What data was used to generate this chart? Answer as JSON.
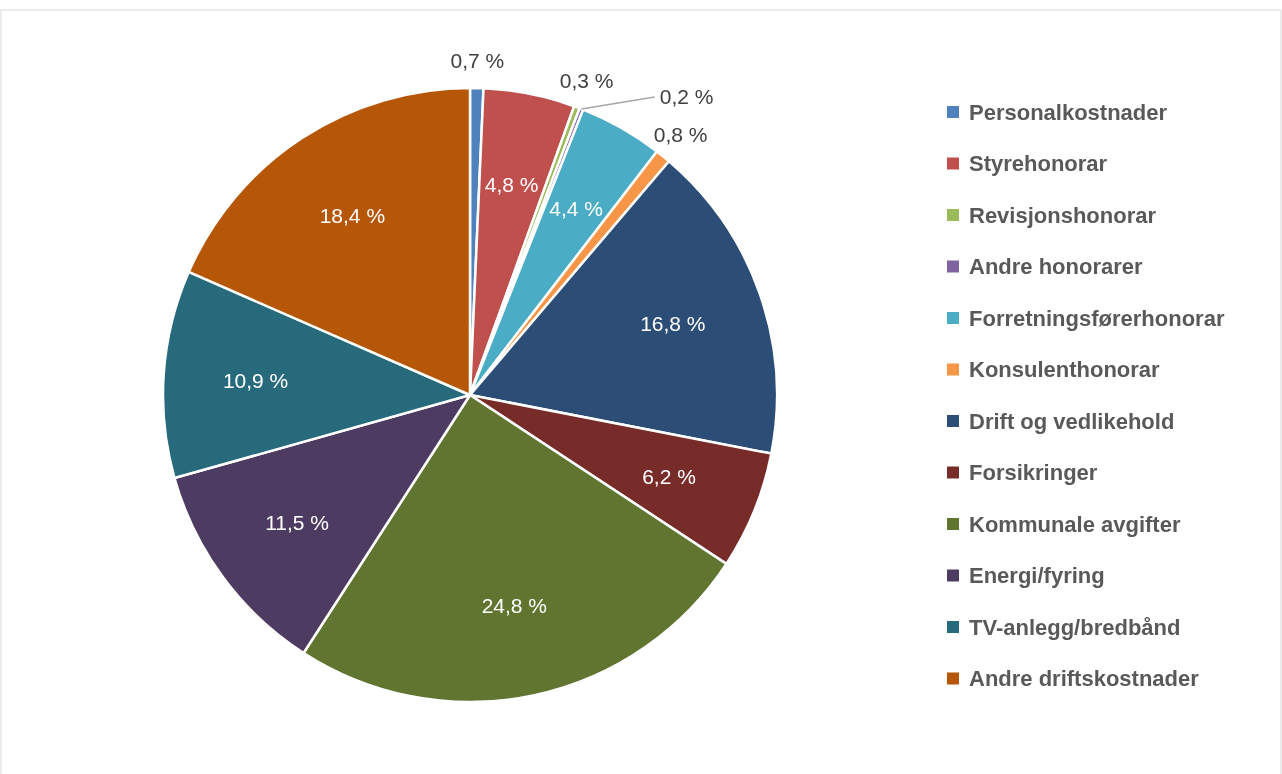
{
  "chart_data": {
    "type": "pie",
    "categories": [
      "Personalkostnader",
      "Styrehonorar",
      "Revisjonshonorar",
      "Andre honorarer",
      "Forretningsførerhonorar",
      "Konsulenthonorar",
      "Drift og vedlikehold",
      "Forsikringer",
      "Kommunale avgifter",
      "Energi/fyring",
      "TV-anlegg/bredbånd",
      "Andre driftskostnader"
    ],
    "values": [
      0.7,
      4.8,
      0.3,
      0.2,
      4.4,
      0.8,
      16.8,
      6.2,
      24.8,
      11.5,
      10.9,
      18.4
    ],
    "colors": [
      "#4f81bd",
      "#c0504d",
      "#9bbb59",
      "#8064a2",
      "#4bacc6",
      "#f79646",
      "#2c4d75",
      "#772c2a",
      "#5f7530",
      "#4d3b62",
      "#276a7c",
      "#b65708"
    ],
    "value_labels": [
      "0,7 %",
      "4,8 %",
      "0,3 %",
      "0,2 %",
      "4,4 %",
      "0,8 %",
      "16,8 %",
      "6,2 %",
      "24,8 %",
      "11,5 %",
      "10,9 %",
      "18,4 %"
    ],
    "legend": "right"
  }
}
